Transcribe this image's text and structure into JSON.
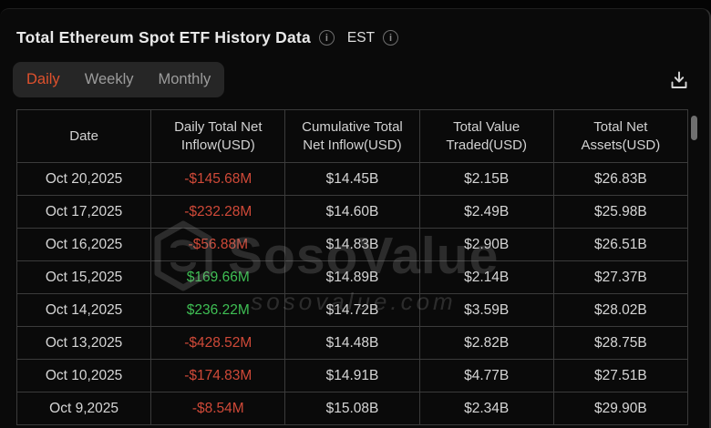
{
  "header": {
    "title": "Total Ethereum Spot ETF History Data",
    "title_info_icon": "info-icon",
    "timezone_label": "EST",
    "timezone_info_icon": "info-icon"
  },
  "tabs": {
    "items": [
      {
        "label": "Daily",
        "active": true
      },
      {
        "label": "Weekly",
        "active": false
      },
      {
        "label": "Monthly",
        "active": false
      }
    ]
  },
  "toolbar": {
    "download_icon": "download-icon"
  },
  "table": {
    "columns": [
      "Date",
      "Daily Total Net Inflow(USD)",
      "Cumulative Total Net Inflow(USD)",
      "Total Value Traded(USD)",
      "Total Net Assets(USD)"
    ],
    "rows": [
      {
        "date": "Oct 20,2025",
        "daily_net_inflow": "-$145.68M",
        "direction": "negative",
        "cumulative_net_inflow": "$14.45B",
        "value_traded": "$2.15B",
        "net_assets": "$26.83B"
      },
      {
        "date": "Oct 17,2025",
        "daily_net_inflow": "-$232.28M",
        "direction": "negative",
        "cumulative_net_inflow": "$14.60B",
        "value_traded": "$2.49B",
        "net_assets": "$25.98B"
      },
      {
        "date": "Oct 16,2025",
        "daily_net_inflow": "-$56.88M",
        "direction": "negative",
        "cumulative_net_inflow": "$14.83B",
        "value_traded": "$2.90B",
        "net_assets": "$26.51B"
      },
      {
        "date": "Oct 15,2025",
        "daily_net_inflow": "$169.66M",
        "direction": "positive",
        "cumulative_net_inflow": "$14.89B",
        "value_traded": "$2.14B",
        "net_assets": "$27.37B"
      },
      {
        "date": "Oct 14,2025",
        "daily_net_inflow": "$236.22M",
        "direction": "positive",
        "cumulative_net_inflow": "$14.72B",
        "value_traded": "$3.59B",
        "net_assets": "$28.02B"
      },
      {
        "date": "Oct 13,2025",
        "daily_net_inflow": "-$428.52M",
        "direction": "negative",
        "cumulative_net_inflow": "$14.48B",
        "value_traded": "$2.82B",
        "net_assets": "$28.75B"
      },
      {
        "date": "Oct 10,2025",
        "daily_net_inflow": "-$174.83M",
        "direction": "negative",
        "cumulative_net_inflow": "$14.91B",
        "value_traded": "$4.77B",
        "net_assets": "$27.51B"
      },
      {
        "date": "Oct 9,2025",
        "daily_net_inflow": "-$8.54M",
        "direction": "negative",
        "cumulative_net_inflow": "$15.08B",
        "value_traded": "$2.34B",
        "net_assets": "$29.90B"
      }
    ]
  },
  "watermark": {
    "brand": "SosoValue",
    "domain": "sosovalue.com",
    "logo_icon": "sosovalue-cube-icon"
  },
  "colors": {
    "negative": "#cf4938",
    "positive": "#3fbf54",
    "accent_tab": "#df512d"
  }
}
